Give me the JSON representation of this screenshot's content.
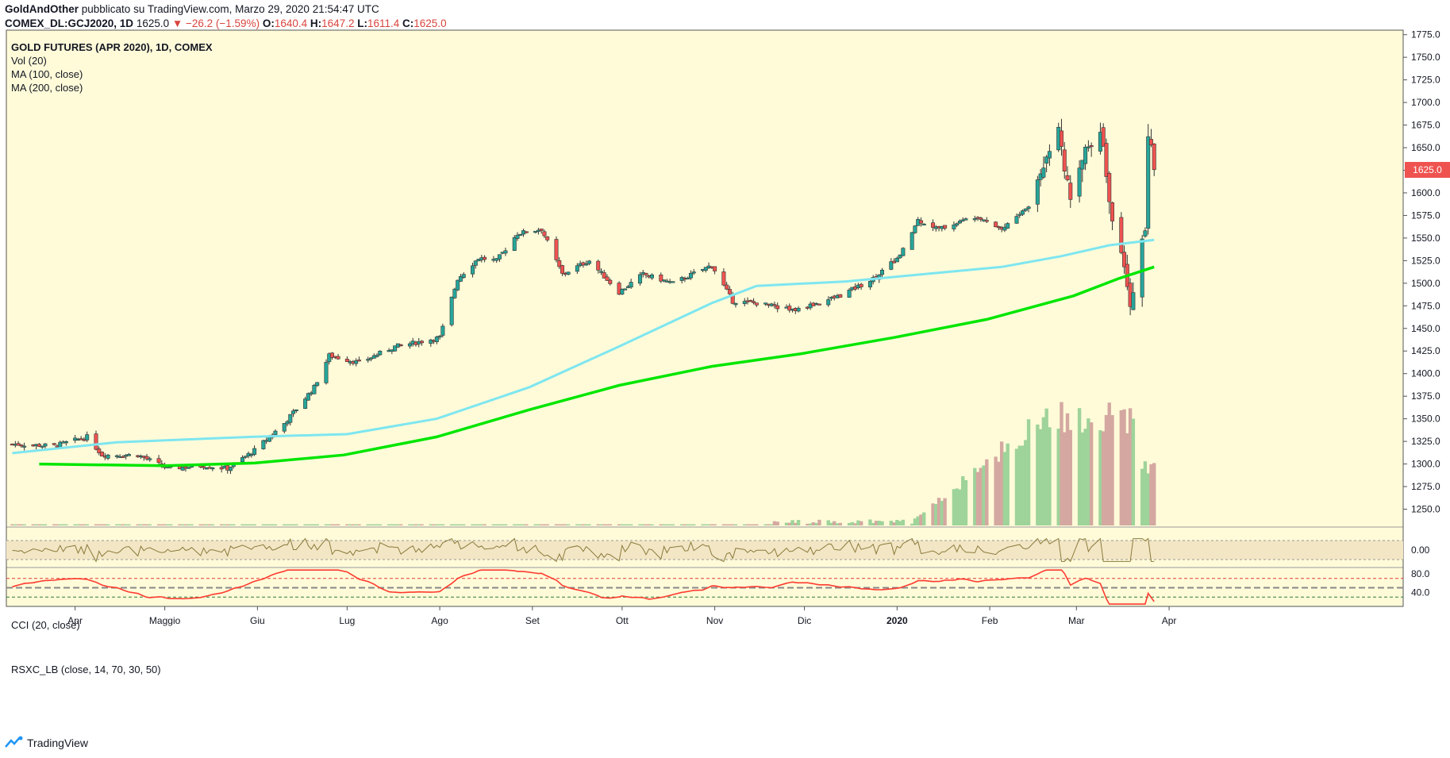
{
  "header": {
    "author": "GoldAndOther",
    "published": "pubblicato su TradingView.com, Marzo 29, 2020 21:54:47 UTC",
    "symbol": "COMEX_DL:GCJ2020, 1D",
    "last": "1625.0",
    "change": "▼ −26.2 (−1.59%)",
    "open_label": "O:",
    "open": "1640.4",
    "high_label": "H:",
    "high": "1647.2",
    "low_label": "L:",
    "low": "1611.4",
    "close_label": "C:",
    "close": "1625.0"
  },
  "legend": {
    "title": "GOLD FUTURES (APR 2020), 1D, COMEX",
    "vol": "Vol (20)",
    "ma100": "MA (100, close)",
    "ma200": "MA (200, close)",
    "cci": "CCI (20, close)",
    "rsx": "RSXC_LB (close, 14, 70, 30, 50)"
  },
  "price_badge": "1625.0",
  "footer": {
    "brand": "TradingView"
  },
  "colors": {
    "background": "#fffbd9",
    "up": "#26a69a",
    "down": "#ef5350",
    "ma100": "#7ee6f0",
    "ma200": "#00e600",
    "cci": "#8a7a3c",
    "rsx": "#ff3b30",
    "vol_up": "#9ed39a",
    "vol_down": "#d4a8a0"
  },
  "chart_data": {
    "type": "candlestick",
    "title": "GOLD FUTURES (APR 2020), 1D, COMEX",
    "x_ticks": [
      "Apr",
      "Maggio",
      "Giu",
      "Lug",
      "Ago",
      "Set",
      "Ott",
      "Nov",
      "Dic",
      "2020",
      "Feb",
      "Mar",
      "Apr"
    ],
    "y_ticks": [
      1250.0,
      1275.0,
      1300.0,
      1325.0,
      1350.0,
      1375.0,
      1400.0,
      1425.0,
      1450.0,
      1475.0,
      1500.0,
      1525.0,
      1550.0,
      1575.0,
      1600.0,
      1625.0,
      1650.0,
      1675.0,
      1700.0,
      1725.0,
      1750.0,
      1775.0
    ],
    "ylim": [
      1232,
      1780
    ],
    "price_path": [
      [
        "2019-03-11",
        1322
      ],
      [
        "2019-03-25",
        1320
      ],
      [
        "2019-04-05",
        1330
      ],
      [
        "2019-04-10",
        1310
      ],
      [
        "2019-04-22",
        1310
      ],
      [
        "2019-05-02",
        1295
      ],
      [
        "2019-05-14",
        1298
      ],
      [
        "2019-05-22",
        1295
      ],
      [
        "2019-05-31",
        1315
      ],
      [
        "2019-06-10",
        1345
      ],
      [
        "2019-06-20",
        1385
      ],
      [
        "2019-06-25",
        1420
      ],
      [
        "2019-07-05",
        1412
      ],
      [
        "2019-07-17",
        1430
      ],
      [
        "2019-07-25",
        1435
      ],
      [
        "2019-08-01",
        1440
      ],
      [
        "2019-08-07",
        1505
      ],
      [
        "2019-08-14",
        1528
      ],
      [
        "2019-08-20",
        1525
      ],
      [
        "2019-08-27",
        1555
      ],
      [
        "2019-09-04",
        1560
      ],
      [
        "2019-09-11",
        1510
      ],
      [
        "2019-09-20",
        1525
      ],
      [
        "2019-09-30",
        1490
      ],
      [
        "2019-10-08",
        1510
      ],
      [
        "2019-10-18",
        1500
      ],
      [
        "2019-10-31",
        1520
      ],
      [
        "2019-11-07",
        1480
      ],
      [
        "2019-11-15",
        1478
      ],
      [
        "2019-11-28",
        1470
      ],
      [
        "2019-12-12",
        1485
      ],
      [
        "2019-12-24",
        1505
      ],
      [
        "2020-01-02",
        1530
      ],
      [
        "2020-01-08",
        1570
      ],
      [
        "2020-01-15",
        1560
      ],
      [
        "2020-01-28",
        1575
      ],
      [
        "2020-02-05",
        1560
      ],
      [
        "2020-02-14",
        1585
      ],
      [
        "2020-02-21",
        1650
      ],
      [
        "2020-02-24",
        1680
      ],
      [
        "2020-02-28",
        1585
      ],
      [
        "2020-03-04",
        1650
      ],
      [
        "2020-03-09",
        1675
      ],
      [
        "2020-03-12",
        1590
      ],
      [
        "2020-03-19",
        1480
      ],
      [
        "2020-03-24",
        1560
      ],
      [
        "2020-03-25",
        1665
      ],
      [
        "2020-03-27",
        1625
      ]
    ],
    "ma100_path": [
      [
        "2019-03-11",
        1312
      ],
      [
        "2019-04-15",
        1324
      ],
      [
        "2019-05-30",
        1330
      ],
      [
        "2019-07-01",
        1333
      ],
      [
        "2019-07-31",
        1350
      ],
      [
        "2019-08-31",
        1385
      ],
      [
        "2019-09-30",
        1430
      ],
      [
        "2019-10-31",
        1478
      ],
      [
        "2019-11-15",
        1497
      ],
      [
        "2019-12-15",
        1502
      ],
      [
        "2020-01-10",
        1510
      ],
      [
        "2020-02-05",
        1518
      ],
      [
        "2020-02-25",
        1530
      ],
      [
        "2020-03-12",
        1542
      ],
      [
        "2020-03-27",
        1548
      ]
    ],
    "ma200_path": [
      [
        "2019-03-20",
        1300
      ],
      [
        "2019-05-01",
        1298
      ],
      [
        "2019-05-31",
        1301
      ],
      [
        "2019-06-30",
        1310
      ],
      [
        "2019-07-31",
        1330
      ],
      [
        "2019-08-31",
        1360
      ],
      [
        "2019-09-30",
        1387
      ],
      [
        "2019-10-31",
        1408
      ],
      [
        "2019-11-30",
        1422
      ],
      [
        "2019-12-31",
        1440
      ],
      [
        "2020-01-31",
        1460
      ],
      [
        "2020-02-29",
        1486
      ],
      [
        "2020-03-15",
        1505
      ],
      [
        "2020-03-27",
        1518
      ]
    ],
    "last_price": 1625.0,
    "cci_ticks": [
      "0.00"
    ],
    "rsx_ticks": [
      "80.0",
      "40.0"
    ],
    "rsx_levels": [
      70,
      50,
      30
    ]
  }
}
